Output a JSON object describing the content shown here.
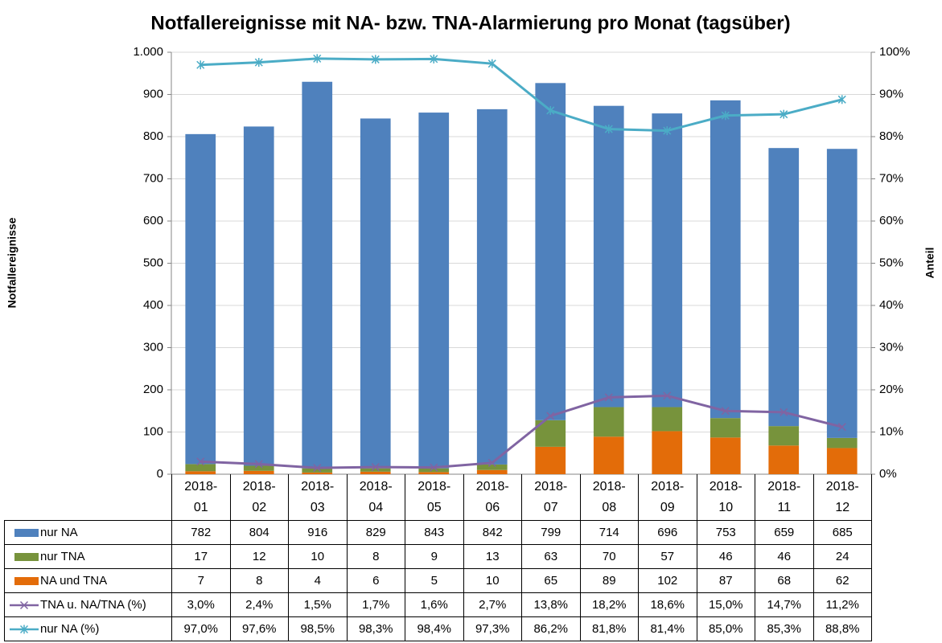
{
  "chart_data": {
    "type": "bar",
    "stacked": true,
    "title": "Notfallereignisse mit NA- bzw. TNA-Alarmierung pro Monat (tagsüber)",
    "y_label": "Notfallereignisse",
    "y2_label": "Anteil",
    "categories": [
      "2018-01",
      "2018-02",
      "2018-03",
      "2018-04",
      "2018-05",
      "2018-06",
      "2018-07",
      "2018-08",
      "2018-09",
      "2018-10",
      "2018-11",
      "2018-12"
    ],
    "ylim": [
      0,
      1000
    ],
    "yticks": [
      0,
      100,
      200,
      300,
      400,
      500,
      600,
      700,
      800,
      900,
      {
        "value": 1000,
        "label": "1.000"
      }
    ],
    "y2lim": [
      0,
      100
    ],
    "y2ticks": [
      {
        "value": 0,
        "label": "0%"
      },
      {
        "value": 10,
        "label": "10%"
      },
      {
        "value": 20,
        "label": "20%"
      },
      {
        "value": 30,
        "label": "30%"
      },
      {
        "value": 40,
        "label": "40%"
      },
      {
        "value": 50,
        "label": "50%"
      },
      {
        "value": 60,
        "label": "60%"
      },
      {
        "value": 70,
        "label": "70%"
      },
      {
        "value": 80,
        "label": "80%"
      },
      {
        "value": 90,
        "label": "90%"
      },
      {
        "value": 100,
        "label": "100%"
      }
    ],
    "grid": true,
    "series": [
      {
        "name": "nur NA",
        "color": "#4f81bd",
        "values": [
          782,
          804,
          916,
          829,
          843,
          842,
          799,
          714,
          696,
          753,
          659,
          685
        ]
      },
      {
        "name": "nur TNA",
        "color": "#77933c",
        "values": [
          17,
          12,
          10,
          8,
          9,
          13,
          63,
          70,
          57,
          46,
          46,
          24
        ]
      },
      {
        "name": "NA und TNA",
        "color": "#e36c09",
        "values": [
          7,
          8,
          4,
          6,
          5,
          10,
          65,
          89,
          102,
          87,
          68,
          62
        ]
      },
      {
        "name": "TNA u. NA/TNA (%)",
        "color": "#8064a2",
        "type": "line",
        "axis": "y2",
        "marker": "x",
        "values": [
          3.0,
          2.4,
          1.5,
          1.7,
          1.6,
          2.7,
          13.8,
          18.2,
          18.6,
          15.0,
          14.7,
          11.2
        ],
        "value_labels": [
          "3,0%",
          "2,4%",
          "1,5%",
          "1,7%",
          "1,6%",
          "2,7%",
          "13,8%",
          "18,2%",
          "18,6%",
          "15,0%",
          "14,7%",
          "11,2%"
        ]
      },
      {
        "name": "nur NA (%)",
        "color": "#4bacc6",
        "type": "line",
        "axis": "y2",
        "marker": "asterisk",
        "values": [
          97.0,
          97.6,
          98.5,
          98.3,
          98.4,
          97.3,
          86.2,
          81.8,
          81.4,
          85.0,
          85.3,
          88.8
        ],
        "value_labels": [
          "97,0%",
          "97,6%",
          "98,5%",
          "98,3%",
          "98,4%",
          "97,3%",
          "86,2%",
          "81,8%",
          "81,4%",
          "85,0%",
          "85,3%",
          "88,8%"
        ]
      }
    ]
  }
}
